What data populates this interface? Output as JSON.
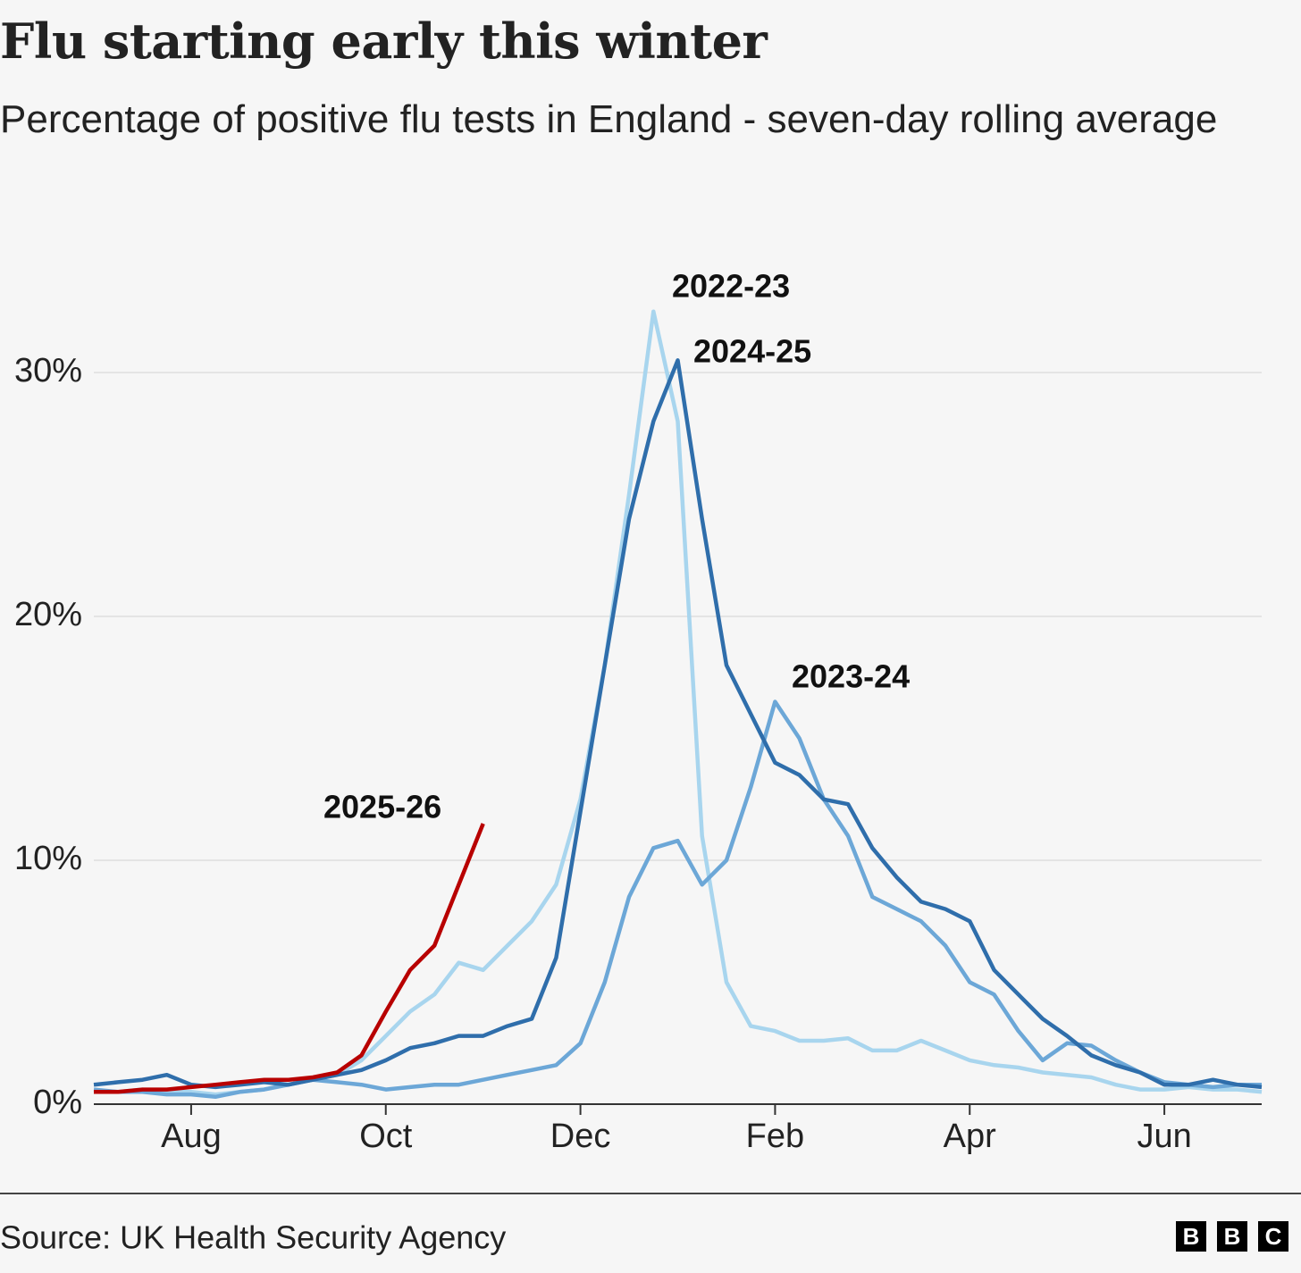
{
  "chart_data": {
    "type": "line",
    "title": "Flu starting early this winter",
    "subtitle": "Percentage of positive flu tests in England - seven-day rolling average",
    "source": "Source: UK Health Security Agency",
    "logo": [
      "B",
      "B",
      "C"
    ],
    "categories": [
      null,
      null,
      null,
      null,
      "Aug",
      null,
      null,
      null,
      null,
      null,
      null,
      null,
      "Oct",
      null,
      null,
      null,
      null,
      null,
      null,
      null,
      "Dec",
      null,
      null,
      null,
      null,
      null,
      null,
      null,
      "Feb",
      null,
      null,
      null,
      null,
      null,
      null,
      null,
      "Apr",
      null,
      null,
      null,
      null,
      null,
      null,
      null,
      "Jun",
      null,
      null,
      null,
      null
    ],
    "ylim": [
      0,
      34
    ],
    "yticks": [
      {
        "value": 0,
        "label": "0%"
      },
      {
        "value": 10,
        "label": "10%"
      },
      {
        "value": 20,
        "label": "20%"
      },
      {
        "value": 30,
        "label": "30%"
      }
    ],
    "grid": true,
    "series": [
      {
        "name": "2022-23",
        "color": "#a8d5ee",
        "values": [
          0.5,
          0.5,
          0.6,
          0.5,
          0.5,
          0.4,
          0.5,
          0.6,
          0.8,
          1.0,
          1.2,
          1.8,
          2.8,
          3.8,
          4.5,
          5.8,
          5.5,
          6.5,
          7.5,
          9,
          12.5,
          18,
          25,
          32.5,
          28,
          11,
          5,
          3.2,
          3,
          2.6,
          2.6,
          2.7,
          2.2,
          2.2,
          2.6,
          2.2,
          1.8,
          1.6,
          1.5,
          1.3,
          1.2,
          1.1,
          0.8,
          0.6,
          0.6,
          0.7,
          0.6,
          0.6,
          0.5
        ]
      },
      {
        "name": "2023-24",
        "color": "#6ca7d7",
        "values": [
          0.6,
          0.5,
          0.5,
          0.4,
          0.4,
          0.3,
          0.5,
          0.6,
          0.8,
          1.0,
          0.9,
          0.8,
          0.6,
          0.7,
          0.8,
          0.8,
          1.0,
          1.2,
          1.4,
          1.6,
          2.5,
          5,
          8.5,
          10.5,
          10.8,
          9,
          10,
          13,
          16.5,
          15,
          12.5,
          11,
          8.5,
          8.0,
          7.5,
          6.5,
          5,
          4.5,
          3.0,
          1.8,
          2.5,
          2.4,
          1.8,
          1.3,
          0.9,
          0.8,
          0.7,
          0.8,
          0.8
        ]
      },
      {
        "name": "2024-25",
        "color": "#2f6eab",
        "values": [
          0.8,
          0.9,
          1.0,
          1.2,
          0.8,
          0.7,
          0.8,
          0.9,
          0.8,
          1.0,
          1.2,
          1.4,
          1.8,
          2.3,
          2.5,
          2.8,
          2.8,
          3.2,
          3.5,
          6,
          12,
          18,
          24,
          28,
          30.5,
          24,
          18,
          16,
          14,
          13.5,
          12.5,
          12.3,
          10.5,
          9.3,
          8.3,
          8.0,
          7.5,
          5.5,
          4.5,
          3.5,
          2.8,
          2.0,
          1.6,
          1.3,
          0.8,
          0.8,
          1.0,
          0.8,
          0.7
        ]
      },
      {
        "name": "2025-26",
        "color": "#b80000",
        "values": [
          0.5,
          0.5,
          0.6,
          0.6,
          0.7,
          0.8,
          0.9,
          1.0,
          1.0,
          1.1,
          1.3,
          2.0,
          3.8,
          5.5,
          6.5,
          9,
          11.5,
          null,
          null,
          null,
          null,
          null,
          null,
          null,
          null,
          null,
          null,
          null,
          null,
          null,
          null,
          null,
          null,
          null,
          null,
          null,
          null,
          null,
          null,
          null,
          null,
          null,
          null,
          null,
          null,
          null,
          null,
          null,
          null
        ]
      }
    ]
  }
}
